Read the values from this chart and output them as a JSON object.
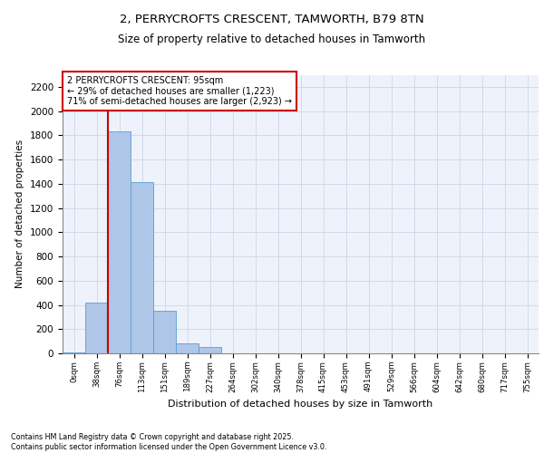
{
  "title": "2, PERRYCROFTS CRESCENT, TAMWORTH, B79 8TN",
  "subtitle": "Size of property relative to detached houses in Tamworth",
  "xlabel": "Distribution of detached houses by size in Tamworth",
  "ylabel": "Number of detached properties",
  "bar_labels": [
    "0sqm",
    "38sqm",
    "76sqm",
    "113sqm",
    "151sqm",
    "189sqm",
    "227sqm",
    "264sqm",
    "302sqm",
    "340sqm",
    "378sqm",
    "415sqm",
    "453sqm",
    "491sqm",
    "529sqm",
    "566sqm",
    "604sqm",
    "642sqm",
    "680sqm",
    "717sqm",
    "755sqm"
  ],
  "bar_values": [
    10,
    420,
    1830,
    1410,
    350,
    80,
    50,
    0,
    0,
    0,
    0,
    0,
    0,
    0,
    0,
    0,
    0,
    0,
    0,
    0,
    0
  ],
  "bar_color": "#aec6e8",
  "bar_edge_color": "#5a9fd4",
  "grid_color": "#c8d0e0",
  "background_color": "#eef2fb",
  "vline_color": "#cc0000",
  "vline_position": 1.5,
  "annotation_text": "2 PERRYCROFTS CRESCENT: 95sqm\n← 29% of detached houses are smaller (1,223)\n71% of semi-detached houses are larger (2,923) →",
  "annotation_box_color": "#cc0000",
  "ylim": [
    0,
    2300
  ],
  "yticks": [
    0,
    200,
    400,
    600,
    800,
    1000,
    1200,
    1400,
    1600,
    1800,
    2000,
    2200
  ],
  "footer": "Contains HM Land Registry data © Crown copyright and database right 2025.\nContains public sector information licensed under the Open Government Licence v3.0."
}
